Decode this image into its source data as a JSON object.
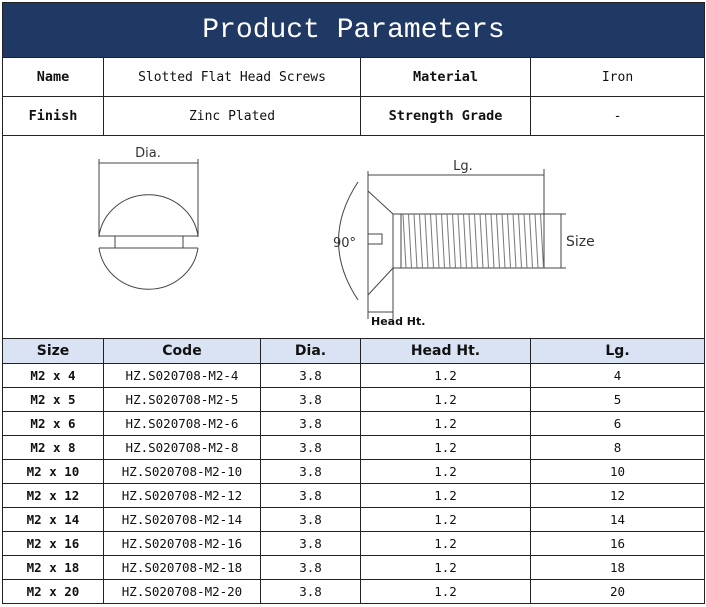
{
  "title": "Product Parameters",
  "info": {
    "name_label": "Name",
    "name_value": "Slotted Flat Head Screws",
    "material_label": "Material",
    "material_value": "Iron",
    "finish_label": "Finish",
    "finish_value": "Zinc Plated",
    "grade_label": "Strength Grade",
    "grade_value": "-"
  },
  "diagram": {
    "dia": "Dia.",
    "lg": "Lg.",
    "angle": "90°",
    "size": "Size",
    "head_ht": "Head Ht."
  },
  "colors": {
    "title_bg": "#203864",
    "header_bg": "#dae3f3"
  },
  "table": {
    "headers": [
      "Size",
      "Code",
      "Dia.",
      "Head Ht.",
      "Lg."
    ],
    "rows": [
      [
        "M2 x 4",
        "HZ.S020708-M2-4",
        "3.8",
        "1.2",
        "4"
      ],
      [
        "M2 x 5",
        "HZ.S020708-M2-5",
        "3.8",
        "1.2",
        "5"
      ],
      [
        "M2 x 6",
        "HZ.S020708-M2-6",
        "3.8",
        "1.2",
        "6"
      ],
      [
        "M2 x 8",
        "HZ.S020708-M2-8",
        "3.8",
        "1.2",
        "8"
      ],
      [
        "M2 x 10",
        "HZ.S020708-M2-10",
        "3.8",
        "1.2",
        "10"
      ],
      [
        "M2 x 12",
        "HZ.S020708-M2-12",
        "3.8",
        "1.2",
        "12"
      ],
      [
        "M2 x 14",
        "HZ.S020708-M2-14",
        "3.8",
        "1.2",
        "14"
      ],
      [
        "M2 x 16",
        "HZ.S020708-M2-16",
        "3.8",
        "1.2",
        "16"
      ],
      [
        "M2 x 18",
        "HZ.S020708-M2-18",
        "3.8",
        "1.2",
        "18"
      ],
      [
        "M2 x 20",
        "HZ.S020708-M2-20",
        "3.8",
        "1.2",
        "20"
      ]
    ]
  }
}
